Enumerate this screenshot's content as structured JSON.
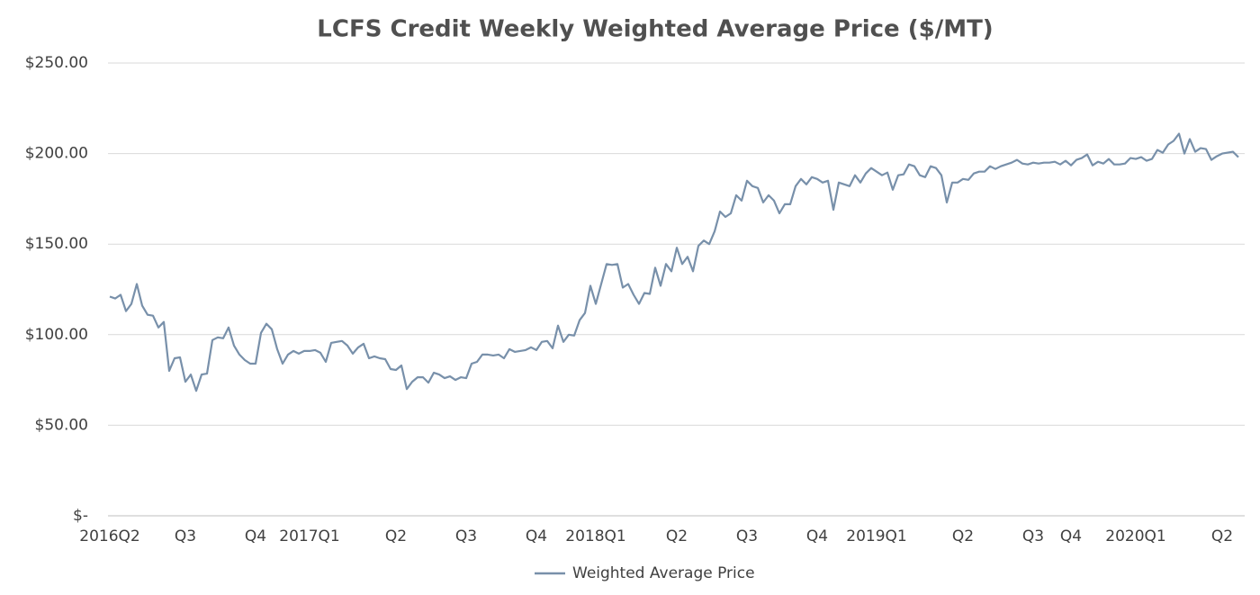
{
  "chart_data": {
    "type": "line",
    "title": "LCFS Credit Weekly Weighted Average Price ($/MT)",
    "categories": [
      "2016Q2",
      null,
      null,
      null,
      null,
      null,
      null,
      null,
      null,
      null,
      null,
      null,
      null,
      null,
      "Q3",
      null,
      null,
      null,
      null,
      null,
      null,
      null,
      null,
      null,
      null,
      null,
      null,
      "Q4",
      null,
      null,
      null,
      null,
      null,
      null,
      null,
      null,
      null,
      "2017Q1",
      null,
      null,
      null,
      null,
      null,
      null,
      null,
      null,
      null,
      null,
      null,
      null,
      null,
      null,
      null,
      "Q2",
      null,
      null,
      null,
      null,
      null,
      null,
      null,
      null,
      null,
      null,
      null,
      null,
      "Q3",
      null,
      null,
      null,
      null,
      null,
      null,
      null,
      null,
      null,
      null,
      null,
      null,
      "Q4",
      null,
      null,
      null,
      null,
      null,
      null,
      null,
      null,
      null,
      null,
      "2018Q1",
      null,
      null,
      null,
      null,
      null,
      null,
      null,
      null,
      null,
      null,
      null,
      null,
      null,
      null,
      "Q2",
      null,
      null,
      null,
      null,
      null,
      null,
      null,
      null,
      null,
      null,
      null,
      null,
      "Q3",
      null,
      null,
      null,
      null,
      null,
      null,
      null,
      null,
      null,
      null,
      null,
      null,
      "Q4",
      null,
      null,
      null,
      null,
      null,
      null,
      null,
      null,
      null,
      null,
      "2019Q1",
      null,
      null,
      null,
      null,
      null,
      null,
      null,
      null,
      null,
      null,
      null,
      null,
      null,
      null,
      null,
      "Q2",
      null,
      null,
      null,
      null,
      null,
      null,
      null,
      null,
      null,
      null,
      null,
      null,
      "Q3",
      null,
      null,
      null,
      null,
      null,
      null,
      "Q4",
      null,
      null,
      null,
      null,
      null,
      null,
      null,
      null,
      null,
      null,
      null,
      "2020Q1",
      null,
      null,
      null,
      null,
      null,
      null,
      null,
      null,
      null,
      null,
      null,
      null,
      null,
      null,
      null,
      "Q2",
      null,
      null,
      null
    ],
    "series": [
      {
        "name": "Weighted Average Price",
        "color": "#7890aa",
        "values": [
          121,
          120,
          122,
          113,
          117,
          128,
          116,
          111,
          110.5,
          104,
          107,
          80,
          87,
          87.5,
          74,
          78,
          69,
          78,
          78.5,
          97,
          98.5,
          98,
          104,
          94,
          89,
          86,
          84,
          84,
          101,
          106,
          103,
          92,
          84,
          89,
          91,
          89.5,
          91,
          91,
          91.5,
          90,
          85,
          95.5,
          96,
          96.5,
          94,
          89.5,
          93,
          95,
          87,
          88,
          87,
          86.5,
          81,
          80.5,
          83,
          70,
          74,
          76.5,
          76.5,
          73.5,
          79,
          78,
          76,
          77,
          75,
          76.5,
          76,
          84,
          85,
          89,
          89,
          88.5,
          89,
          87,
          92,
          90.5,
          91,
          91.5,
          93,
          91.5,
          96,
          96.5,
          92.5,
          105,
          96,
          100,
          99.5,
          108,
          112,
          127,
          117,
          128,
          139,
          138.5,
          139,
          126,
          128,
          122,
          117,
          123,
          122.5,
          137,
          127,
          139,
          135,
          148,
          139,
          143,
          135,
          149,
          152,
          150,
          157,
          168,
          165,
          167,
          177,
          174,
          185,
          182,
          181,
          173,
          177,
          174,
          167,
          172,
          172,
          182,
          186,
          183,
          187,
          186,
          184,
          185,
          169,
          184,
          183,
          182,
          188,
          184,
          189,
          192,
          190,
          188,
          189.5,
          180,
          188,
          188.5,
          194,
          193,
          188,
          187,
          193,
          192,
          188,
          173,
          184,
          184,
          186,
          185.5,
          189,
          190,
          190,
          193,
          191.5,
          193,
          194,
          195,
          196.5,
          194.5,
          194,
          195,
          194.5,
          195,
          195,
          195.5,
          194,
          196,
          193.5,
          196.5,
          197.5,
          199.5,
          193.5,
          195.5,
          194.5,
          197,
          194,
          194,
          194.5,
          197.5,
          197,
          198,
          196,
          197,
          202,
          200.5,
          205,
          207,
          211,
          200,
          208,
          201,
          203,
          202.5,
          196.5,
          198.5,
          200,
          200.5,
          201,
          198
        ]
      }
    ],
    "ylim": [
      0,
      250
    ],
    "yticks": [
      {
        "value": 0,
        "label": "$-"
      },
      {
        "value": 50,
        "label": "$50.00"
      },
      {
        "value": 100,
        "label": "$100.00"
      },
      {
        "value": 150,
        "label": "$150.00"
      },
      {
        "value": 200,
        "label": "$200.00"
      },
      {
        "value": 250,
        "label": "$250.00"
      }
    ],
    "grid": true,
    "legend": "bottom"
  }
}
